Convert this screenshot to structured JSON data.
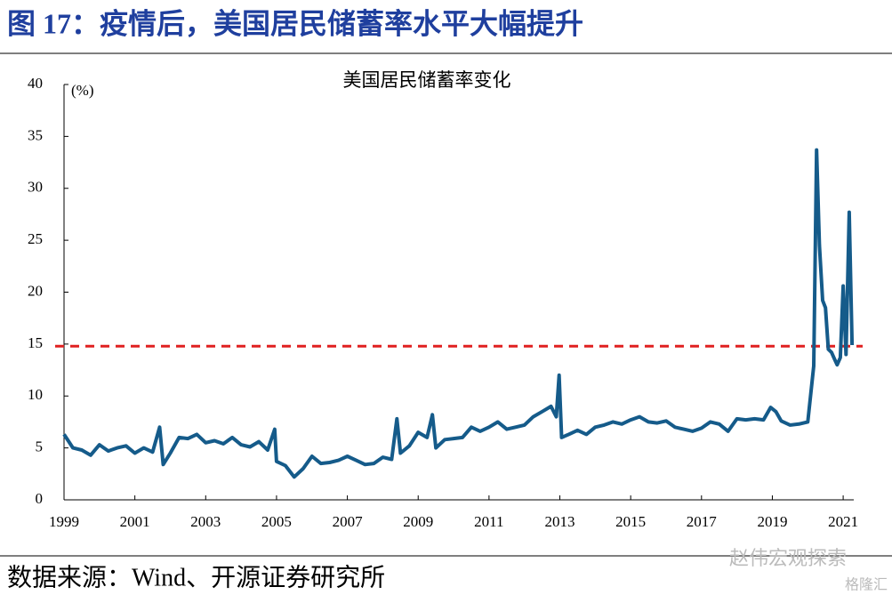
{
  "heading": "图 17：疫情后，美国居民储蓄率水平大幅提升",
  "source": "数据来源：Wind、开源证券研究所",
  "watermark": [
    "赵伟宏观探索",
    "格隆汇"
  ],
  "chart_data": {
    "type": "line",
    "title": "美国居民储蓄率变化",
    "ylabel": "(%)",
    "color": "#155b8a",
    "reference_line": 14.8,
    "reference_color": "#e02020",
    "xlim": [
      1999,
      2021.55
    ],
    "xticks": [
      1999,
      2001,
      2003,
      2005,
      2007,
      2009,
      2011,
      2013,
      2015,
      2017,
      2019,
      2021
    ],
    "ylim": [
      0,
      40
    ],
    "yticks": [
      0,
      5,
      10,
      15,
      20,
      25,
      30,
      35,
      40
    ],
    "x": [
      1999.0,
      1999.25,
      1999.5,
      1999.75,
      2000.0,
      2000.25,
      2000.5,
      2000.75,
      2001.0,
      2001.25,
      2001.5,
      2001.7,
      2001.8,
      2002.0,
      2002.25,
      2002.5,
      2002.75,
      2003.0,
      2003.25,
      2003.5,
      2003.75,
      2004.0,
      2004.25,
      2004.5,
      2004.75,
      2004.95,
      2005.0,
      2005.25,
      2005.5,
      2005.75,
      2006.0,
      2006.25,
      2006.5,
      2006.75,
      2007.0,
      2007.25,
      2007.5,
      2007.75,
      2008.0,
      2008.25,
      2008.4,
      2008.5,
      2008.75,
      2009.0,
      2009.25,
      2009.4,
      2009.5,
      2009.75,
      2010.0,
      2010.25,
      2010.5,
      2010.75,
      2011.0,
      2011.25,
      2011.5,
      2011.75,
      2012.0,
      2012.25,
      2012.5,
      2012.75,
      2012.9,
      2012.98,
      2013.05,
      2013.25,
      2013.5,
      2013.75,
      2014.0,
      2014.25,
      2014.5,
      2014.75,
      2015.0,
      2015.25,
      2015.5,
      2015.75,
      2016.0,
      2016.25,
      2016.5,
      2016.75,
      2017.0,
      2017.25,
      2017.5,
      2017.75,
      2018.0,
      2018.25,
      2018.5,
      2018.75,
      2018.95,
      2019.1,
      2019.25,
      2019.5,
      2019.75,
      2020.0,
      2020.17,
      2020.25,
      2020.33,
      2020.42,
      2020.5,
      2020.58,
      2020.67,
      2020.75,
      2020.83,
      2020.92,
      2021.0,
      2021.08,
      2021.17,
      2021.25
    ],
    "values": [
      6.3,
      5.0,
      4.8,
      4.3,
      5.3,
      4.7,
      5.0,
      5.2,
      4.5,
      5.0,
      4.6,
      7.0,
      3.4,
      4.5,
      6.0,
      5.9,
      6.3,
      5.5,
      5.7,
      5.4,
      6.0,
      5.3,
      5.1,
      5.6,
      4.8,
      6.8,
      3.7,
      3.3,
      2.2,
      3.0,
      4.2,
      3.5,
      3.6,
      3.8,
      4.2,
      3.8,
      3.4,
      3.5,
      4.1,
      3.9,
      7.8,
      4.5,
      5.2,
      6.5,
      6.0,
      8.2,
      5.0,
      5.8,
      5.9,
      6.0,
      7.0,
      6.6,
      7.0,
      7.5,
      6.8,
      7.0,
      7.2,
      8.0,
      8.5,
      9.0,
      8.0,
      12.0,
      6.0,
      6.3,
      6.7,
      6.3,
      7.0,
      7.2,
      7.5,
      7.3,
      7.7,
      8.0,
      7.5,
      7.4,
      7.6,
      7.0,
      6.8,
      6.6,
      6.9,
      7.5,
      7.3,
      6.6,
      7.8,
      7.7,
      7.8,
      7.7,
      8.9,
      8.5,
      7.6,
      7.2,
      7.3,
      7.5,
      12.9,
      33.7,
      24.5,
      19.2,
      18.5,
      14.5,
      14.2,
      13.6,
      13.0,
      13.7,
      20.6,
      14.0,
      27.7,
      14.9
    ]
  }
}
